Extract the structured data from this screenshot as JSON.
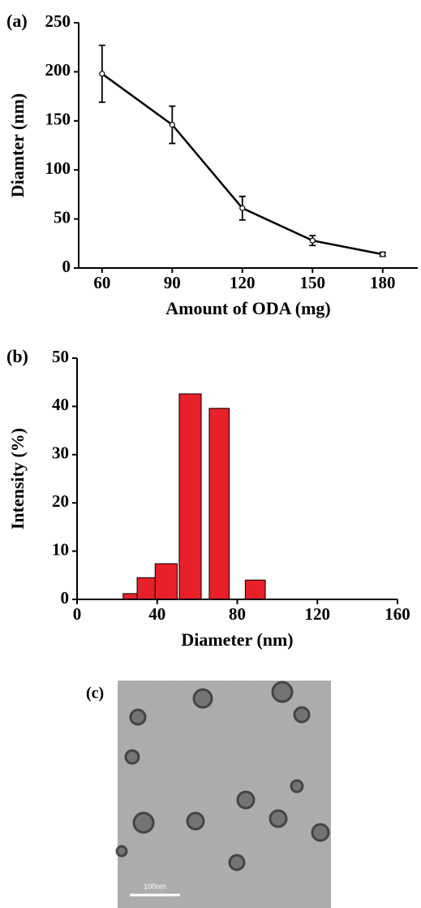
{
  "chart_data": [
    {
      "type": "line",
      "panel_label": "(a)",
      "x_label": "Amount of ODA (mg)",
      "y_label": "Diamter (nm)",
      "x": [
        60,
        90,
        120,
        150,
        180
      ],
      "series": [
        {
          "values": [
            198,
            146,
            61,
            28,
            14
          ],
          "errors": [
            29,
            19,
            12,
            5,
            2
          ],
          "color": "#000000"
        }
      ],
      "xlim": [
        50,
        195
      ],
      "xticks": [
        60,
        90,
        120,
        150,
        180
      ],
      "ylim": [
        0,
        250
      ],
      "yticks": [
        0,
        50,
        100,
        150,
        200,
        250
      ]
    },
    {
      "type": "bar",
      "panel_label": "(b)",
      "x_label": "Diameter (nm)",
      "y_label": "Intensity (%)",
      "x_left": [
        23,
        30,
        39,
        51,
        66,
        84
      ],
      "x_right": [
        30,
        39,
        50,
        62,
        76,
        94
      ],
      "values": [
        1.2,
        4.5,
        7.4,
        42.6,
        39.6,
        4.0
      ],
      "color": "#e8202a",
      "xlim": [
        0,
        160
      ],
      "xticks": [
        0,
        40,
        80,
        120,
        160
      ],
      "ylim": [
        0,
        50
      ],
      "yticks": [
        0,
        10,
        20,
        30,
        40,
        50
      ]
    }
  ],
  "image": {
    "panel_label": "(c)",
    "scale_bar": "100nm"
  }
}
